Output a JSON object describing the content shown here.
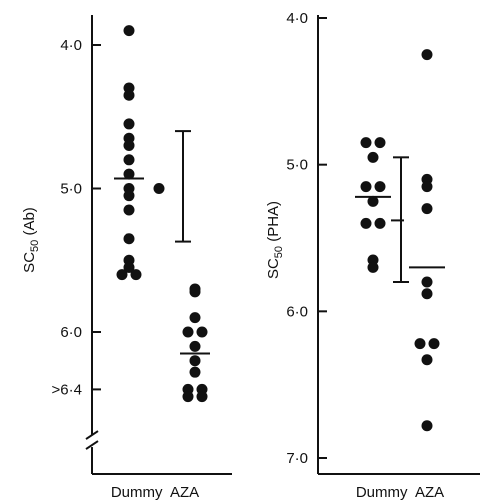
{
  "chart_data": [
    {
      "type": "scatter",
      "ylabel": "SC50 (Ab)",
      "ylabel_main": "SC",
      "ylabel_sub": "50",
      "ylabel_rest": " (Ab)",
      "y_reversed": true,
      "ylim": [
        3.9,
        6.65
      ],
      "yticks": [
        {
          "value": 4.0,
          "label": "4·0"
        },
        {
          "value": 5.0,
          "label": "5·0"
        },
        {
          "value": 6.0,
          "label": "6·0"
        },
        {
          "value": 6.4,
          "label": ">6·4"
        }
      ],
      "axis_break_at": 6.3,
      "categories": [
        "Dummy",
        "AZA"
      ],
      "category_label_text": "Dummy  AZA",
      "series": [
        {
          "category": "Dummy",
          "values": [
            3.9,
            4.3,
            4.35,
            4.55,
            4.65,
            4.7,
            4.8,
            4.9,
            5.0,
            5.05,
            5.15,
            5.35,
            5.5,
            5.55,
            5.6,
            5.6
          ],
          "mean": 4.93
        },
        {
          "category": "AZA",
          "values": [
            5.7,
            5.72,
            5.9,
            6.0,
            6.0,
            6.1,
            6.2,
            6.28,
            6.4,
            6.4,
            6.45,
            6.45
          ],
          "mean": 6.15
        }
      ],
      "error_bar": {
        "center": 5.0,
        "low": 4.6,
        "high": 5.37
      }
    },
    {
      "type": "scatter",
      "ylabel": "SC50 (PHA)",
      "ylabel_main": "SC",
      "ylabel_sub": "50",
      "ylabel_rest": " (PHA)",
      "y_reversed": true,
      "ylim": [
        4.0,
        7.0
      ],
      "yticks": [
        {
          "value": 4.0,
          "label": "4·0"
        },
        {
          "value": 5.0,
          "label": "5·0"
        },
        {
          "value": 6.0,
          "label": "6·0"
        },
        {
          "value": 7.0,
          "label": "7·0"
        }
      ],
      "categories": [
        "Dummy",
        "AZA"
      ],
      "category_label_text": "Dummy  AZA",
      "series": [
        {
          "category": "Dummy",
          "values": [
            4.85,
            4.85,
            4.95,
            5.15,
            5.15,
            5.25,
            5.4,
            5.4,
            5.65,
            5.7
          ],
          "mean": 5.22
        },
        {
          "category": "AZA",
          "values": [
            4.25,
            5.1,
            5.15,
            5.3,
            5.8,
            5.88,
            6.22,
            6.22,
            6.33,
            6.78
          ],
          "mean": 5.7
        }
      ],
      "error_bar": {
        "center": 5.38,
        "low": 4.95,
        "high": 5.8
      }
    }
  ]
}
